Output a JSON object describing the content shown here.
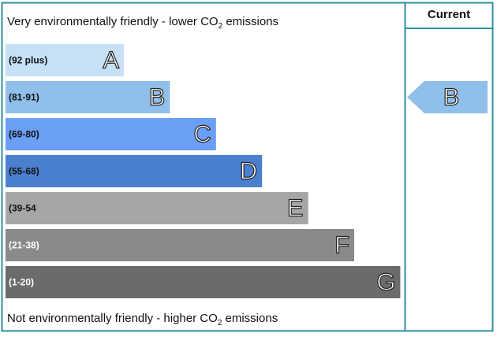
{
  "top_caption": {
    "text": "Very environmentally friendly - lower CO",
    "subscript": "2",
    "tail": " emissions"
  },
  "bottom_caption": {
    "text": "Not environmentally friendly - higher CO",
    "subscript": "2",
    "tail": " emissions"
  },
  "current_header": "Current",
  "bands": [
    {
      "range": "(92 plus)",
      "letter": "A"
    },
    {
      "range": "(81-91)",
      "letter": "B"
    },
    {
      "range": "(69-80)",
      "letter": "C"
    },
    {
      "range": "(55-68)",
      "letter": "D"
    },
    {
      "range": "(39-54",
      "letter": "E"
    },
    {
      "range": "(21-38)",
      "letter": "F"
    },
    {
      "range": "(1-20)",
      "letter": "G"
    }
  ],
  "current_rating": "B"
}
